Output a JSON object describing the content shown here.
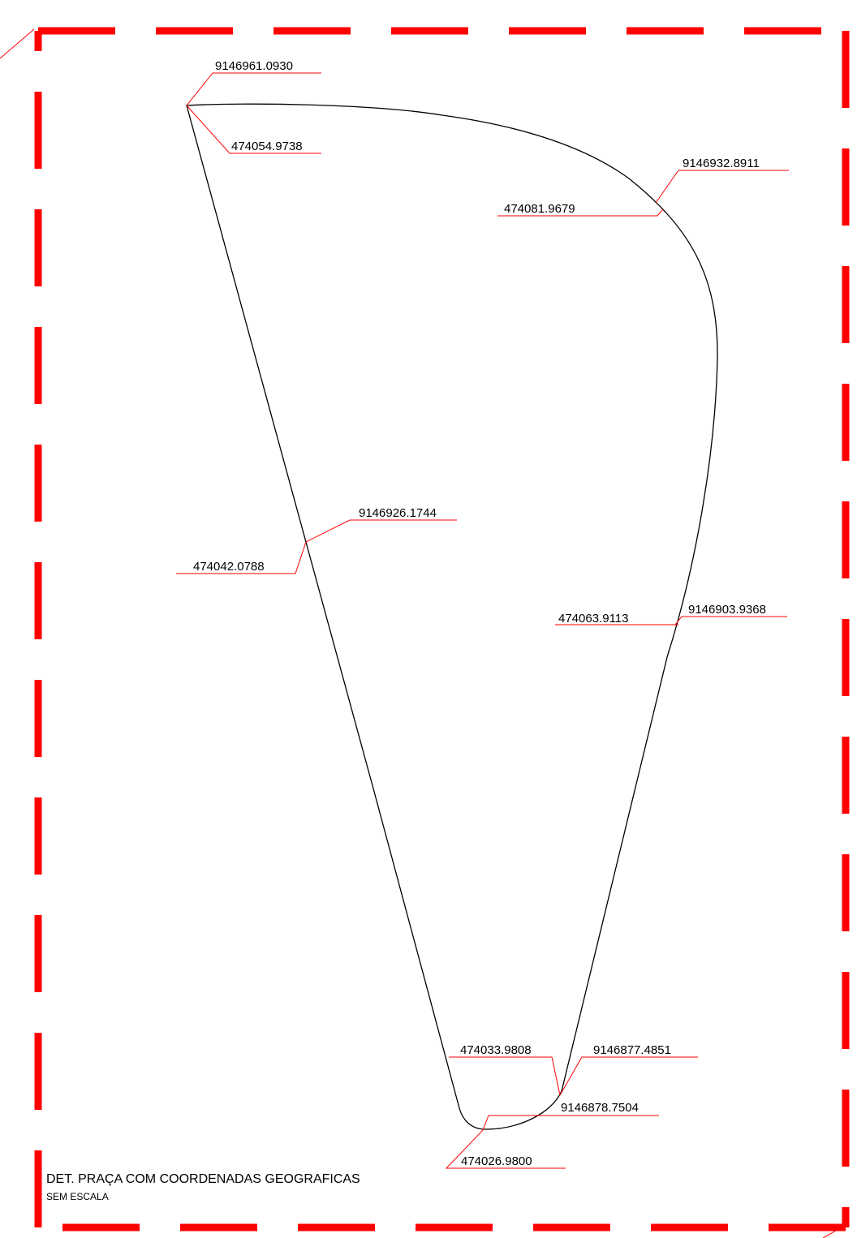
{
  "colors": {
    "frame": "#ff0000",
    "leader": "#ff0000",
    "outline": "#000000",
    "text": "#000000",
    "background": "#ffffff"
  },
  "title": "DET. PRAÇA COM COORDENADAS GEOGRAFICAS",
  "subtitle": "SEM ESCALA",
  "coordinates": {
    "p1_n": "9146961.0930",
    "p1_e": "474054.9738",
    "p2_n": "9146932.8911",
    "p2_e": "474081.9679",
    "p3_n": "9146926.1744",
    "p3_e": "474042.0788",
    "p4_n": "9146903.9368",
    "p4_e": "474063.9113",
    "p5_n": "9146877.4851",
    "p5_e": "474033.9808",
    "p6_n": "9146878.7504",
    "p6_e": "474026.9800"
  }
}
